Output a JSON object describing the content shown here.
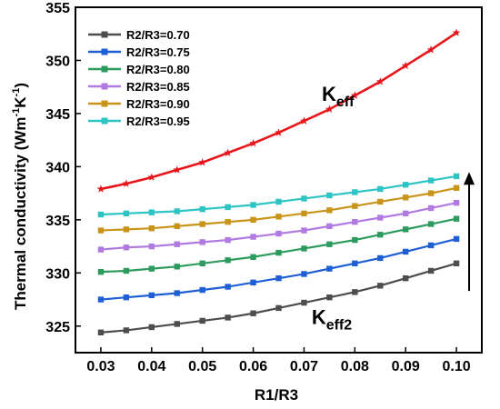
{
  "chart_data": {
    "type": "line",
    "title": "",
    "xlabel": "R1/R3",
    "ylabel": "Thermal conductivity (Wm",
    "ylabel_sup1": "-1",
    "ylabel_mid": "K",
    "ylabel_sup2": "-1",
    "ylabel_close": ")",
    "xlim": [
      0.025,
      0.105
    ],
    "ylim": [
      322.5,
      355
    ],
    "x_ticks": [
      0.03,
      0.04,
      0.05,
      0.06,
      0.07,
      0.08,
      0.09,
      0.1
    ],
    "x_tick_labels": [
      "0.03",
      "0.04",
      "0.05",
      "0.06",
      "0.07",
      "0.08",
      "0.09",
      "0.10"
    ],
    "y_ticks": [
      325,
      330,
      335,
      340,
      345,
      350,
      355
    ],
    "y_tick_labels": [
      "325",
      "330",
      "335",
      "340",
      "345",
      "350",
      "355"
    ],
    "grid": false,
    "legend_position": "top-left",
    "x": [
      0.03,
      0.035,
      0.04,
      0.045,
      0.05,
      0.055,
      0.06,
      0.065,
      0.07,
      0.075,
      0.08,
      0.085,
      0.09,
      0.095,
      0.1
    ],
    "series": [
      {
        "name": "R2/R3=0.70",
        "color": "#4d4d4d",
        "marker": "square",
        "values": [
          324.4,
          324.6,
          324.9,
          325.2,
          325.5,
          325.8,
          326.2,
          326.7,
          327.2,
          327.7,
          328.2,
          328.8,
          329.5,
          330.2,
          330.9
        ]
      },
      {
        "name": "R2/R3=0.75",
        "color": "#1f5fd6",
        "marker": "square",
        "values": [
          327.5,
          327.7,
          327.9,
          328.1,
          328.4,
          328.7,
          329.1,
          329.5,
          329.9,
          330.4,
          330.9,
          331.4,
          332.0,
          332.6,
          333.2
        ]
      },
      {
        "name": "R2/R3=0.80",
        "color": "#2e9b5e",
        "marker": "square",
        "values": [
          330.1,
          330.2,
          330.4,
          330.6,
          330.9,
          331.2,
          331.5,
          331.9,
          332.3,
          332.7,
          333.1,
          333.6,
          334.1,
          334.6,
          335.1
        ]
      },
      {
        "name": "R2/R3=0.85",
        "color": "#b07ae0",
        "marker": "square",
        "values": [
          332.2,
          332.4,
          332.5,
          332.7,
          332.9,
          333.1,
          333.4,
          333.7,
          334.0,
          334.4,
          334.8,
          335.2,
          335.6,
          336.1,
          336.6
        ]
      },
      {
        "name": "R2/R3=0.90",
        "color": "#c8951a",
        "marker": "square",
        "values": [
          334.0,
          334.1,
          334.2,
          334.4,
          334.6,
          334.8,
          335.0,
          335.3,
          335.6,
          335.9,
          336.3,
          336.7,
          337.1,
          337.5,
          338.0
        ]
      },
      {
        "name": "R2/R3=0.95",
        "color": "#2ec4c4",
        "marker": "square",
        "values": [
          335.5,
          335.6,
          335.7,
          335.8,
          336.0,
          336.2,
          336.4,
          336.7,
          337.0,
          337.3,
          337.6,
          337.9,
          338.3,
          338.7,
          339.1
        ]
      },
      {
        "name": "",
        "color": "#e8151b",
        "marker": "star",
        "values": [
          337.9,
          338.4,
          339.0,
          339.7,
          340.4,
          341.3,
          342.2,
          343.2,
          344.3,
          345.4,
          346.7,
          348.0,
          349.5,
          351.0,
          352.6
        ]
      }
    ],
    "annotations": [
      {
        "id": "keff",
        "base": "K",
        "sub": "eff",
        "x": 0.0735,
        "y": 346.2
      },
      {
        "id": "keff2",
        "base": "K",
        "sub": "eff2",
        "x": 0.0715,
        "y": 325.2
      }
    ],
    "arrow": {
      "direction": "up",
      "x": 0.1025,
      "y_from": 328.3,
      "y_to": 339.5
    }
  }
}
